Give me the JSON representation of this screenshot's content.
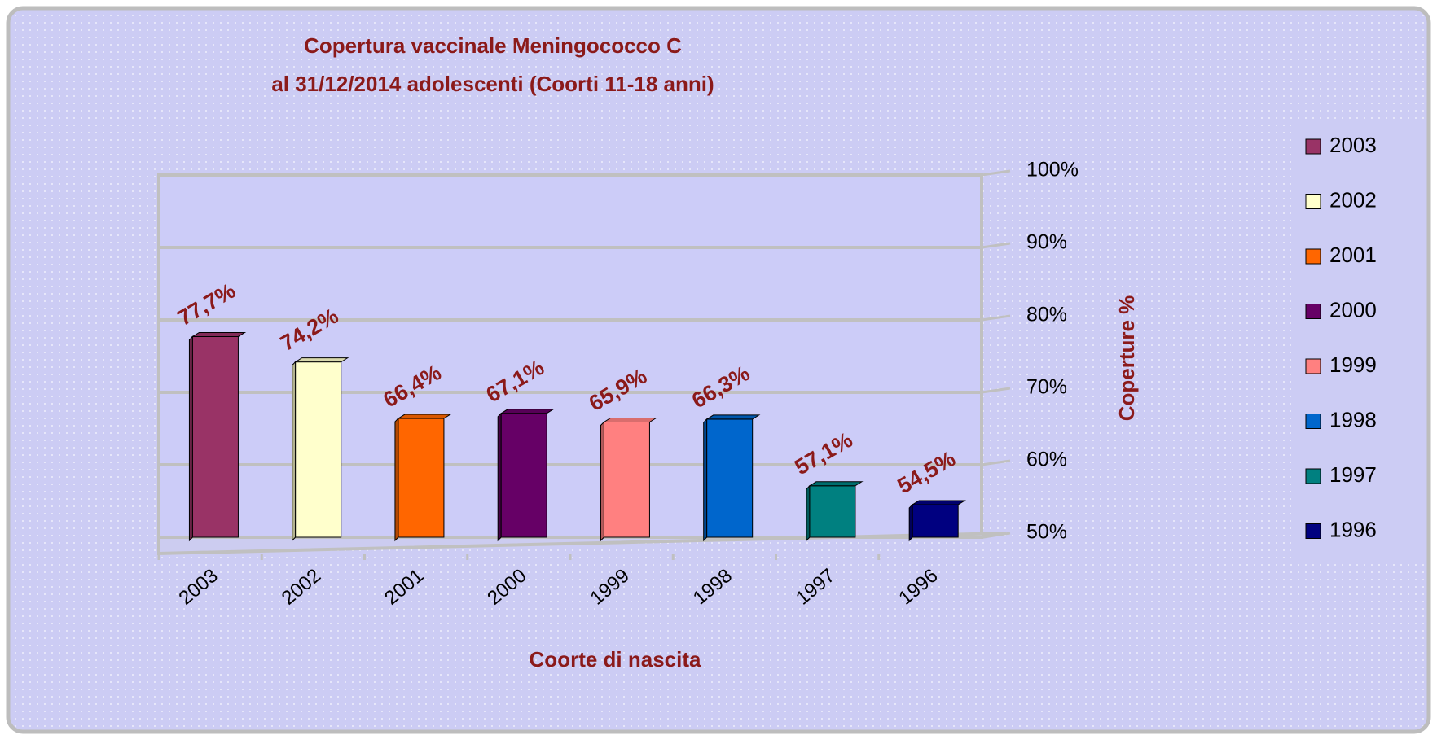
{
  "chart_data": {
    "type": "bar",
    "title": [
      "Copertura vaccinale Meningococco C",
      "al 31/12/2014 adolescenti (Coorti 11-18 anni)"
    ],
    "x_label": "Coorte di nascita",
    "y_label": "Coperture %",
    "categories": [
      "2003",
      "2002",
      "2001",
      "2000",
      "1999",
      "1998",
      "1997",
      "1996"
    ],
    "values": [
      77.7,
      74.2,
      66.4,
      67.1,
      65.9,
      66.3,
      57.1,
      54.5
    ],
    "value_labels": [
      "77,7%",
      "74,2%",
      "66,4%",
      "67,1%",
      "65,9%",
      "66,3%",
      "57,1%",
      "54,5%"
    ],
    "colors": [
      "#993366",
      "#ffffcc",
      "#ff6600",
      "#660066",
      "#ff8080",
      "#0066cc",
      "#008080",
      "#000080"
    ],
    "ylim": [
      50,
      100
    ],
    "yticks": [
      {
        "value": 50,
        "label": "50%"
      },
      {
        "value": 60,
        "label": "60%"
      },
      {
        "value": 70,
        "label": "70%"
      },
      {
        "value": 80,
        "label": "80%"
      },
      {
        "value": 90,
        "label": "90%"
      },
      {
        "value": 100,
        "label": "100%"
      }
    ],
    "grid": true,
    "legend": "right"
  }
}
